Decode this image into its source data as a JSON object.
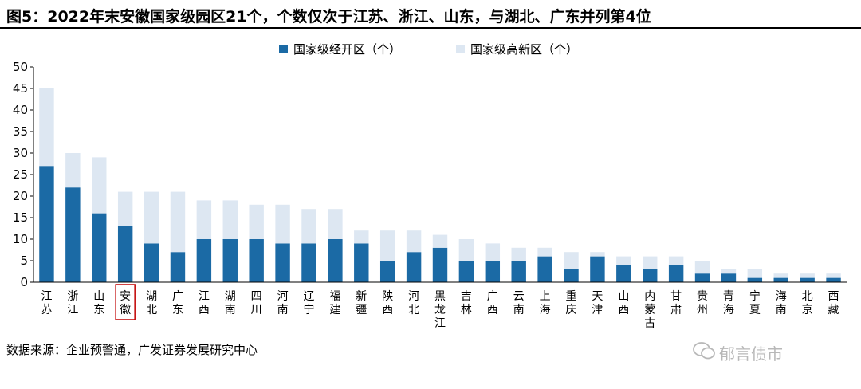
{
  "title": "图5：2022年末安徽国家级园区21个，个数仅次于江苏、浙江、山东，与湖北、广东并列第4位",
  "source": "数据来源：企业预警通，广发证券发展研究中心",
  "watermark": "郁言债市",
  "colors": {
    "econ": "#1b6aa5",
    "hightech": "#dde7f2",
    "highlight": "#c00000"
  },
  "chart_data": {
    "type": "bar",
    "stacked": true,
    "title": "",
    "xlabel": "",
    "ylabel": "",
    "ylim": [
      0,
      50
    ],
    "yticks": [
      "0",
      "5",
      "10",
      "15",
      "20",
      "25",
      "30",
      "35",
      "40",
      "45",
      "50"
    ],
    "legend_position": "top-center",
    "highlight_category": "安徽",
    "categories": [
      "江苏",
      "浙江",
      "山东",
      "安徽",
      "湖北",
      "广东",
      "江西",
      "湖南",
      "四川",
      "河南",
      "辽宁",
      "福建",
      "新疆",
      "陕西",
      "河北",
      "黑龙江",
      "吉林",
      "广西",
      "云南",
      "上海",
      "重庆",
      "天津",
      "山西",
      "内蒙古",
      "甘肃",
      "贵州",
      "青海",
      "宁夏",
      "海南",
      "北京",
      "西藏"
    ],
    "series": [
      {
        "name": "国家级经开区（个）",
        "values": [
          27,
          22,
          16,
          13,
          9,
          7,
          10,
          10,
          10,
          9,
          9,
          10,
          9,
          5,
          7,
          8,
          5,
          5,
          5,
          6,
          3,
          6,
          4,
          3,
          4,
          2,
          2,
          1,
          1,
          1,
          1
        ]
      },
      {
        "name": "国家级高新区（个）",
        "values": [
          18,
          8,
          13,
          8,
          12,
          14,
          9,
          9,
          8,
          9,
          8,
          7,
          3,
          7,
          5,
          3,
          5,
          4,
          3,
          2,
          4,
          1,
          2,
          3,
          2,
          3,
          1,
          2,
          1,
          1,
          1
        ]
      }
    ]
  }
}
